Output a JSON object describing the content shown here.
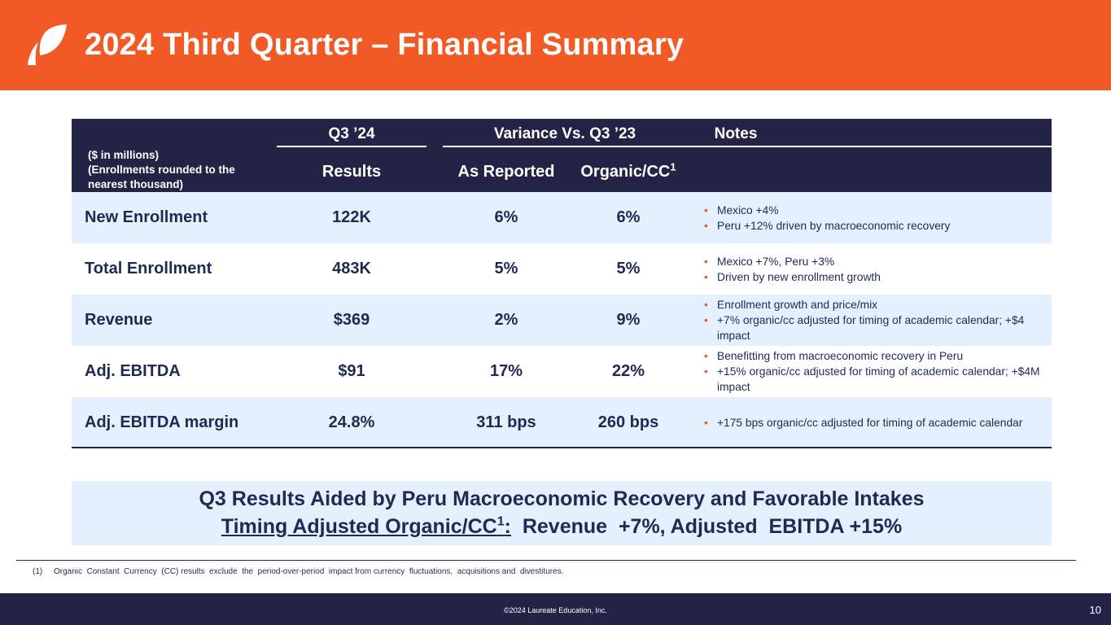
{
  "header": {
    "title": "2024 Third Quarter – Financial Summary",
    "logo": "laureate-leaf-logo",
    "accent_color": "#f15a25"
  },
  "table": {
    "header": {
      "units_note": "($ in millions)\n(Enrollments  rounded  to the nearest thousand)",
      "group_q3": "Q3 ’24",
      "group_variance": "Variance Vs. Q3 ’23",
      "group_notes": "Notes",
      "col_results": "Results",
      "col_as_reported": "As Reported",
      "col_organic": "Organic/CC",
      "col_organic_sup": "1"
    },
    "rows": [
      {
        "label": "New Enrollment",
        "results": "122K",
        "as_reported": "6%",
        "organic": "6%",
        "notes": [
          "Mexico +4%",
          "Peru +12% driven by macroeconomic recovery"
        ]
      },
      {
        "label": "Total Enrollment",
        "results": "483K",
        "as_reported": "5%",
        "organic": "5%",
        "notes": [
          "Mexico +7%, Peru +3%",
          "Driven by new enrollment  growth"
        ]
      },
      {
        "label": "Revenue",
        "results": "$369",
        "as_reported": "2%",
        "organic": "9%",
        "notes": [
          "Enrollment  growth and price/mix",
          "+7% organic/cc adjusted  for timing of academic calendar; +$4 impact"
        ]
      },
      {
        "label": "Adj. EBITDA",
        "results": "$91",
        "as_reported": "17%",
        "organic": "22%",
        "notes": [
          "Benefitting from macroeconomic recovery in Peru",
          "+15% organic/cc adjusted  for timing of academic calendar; +$4M impact"
        ]
      },
      {
        "label": "Adj. EBITDA margin",
        "results": "24.8%",
        "as_reported": "311 bps",
        "organic": "260 bps",
        "notes": [
          "+175 bps organic/cc adjusted  for timing of academic calendar"
        ]
      }
    ]
  },
  "callout": {
    "line1": "Q3 Results Aided by Peru Macroeconomic  Recovery and Favorable Intakes",
    "line2_underlined": "Timing Adjusted  Organic/CC",
    "line2_sup": "1",
    "line2_colon": ":",
    "line2_rest": "  Revenue  +7%, Adjusted  EBITDA +15%"
  },
  "footnote": {
    "number": "(1)",
    "text": "Organic  Constant  Currency  (CC) results  exclude  the  period-over-period  impact from currency  fluctuations,  acquisitions and  divestitures."
  },
  "footer": {
    "copyright": "©2024 Laureate Education, Inc.",
    "page_number": "10"
  }
}
